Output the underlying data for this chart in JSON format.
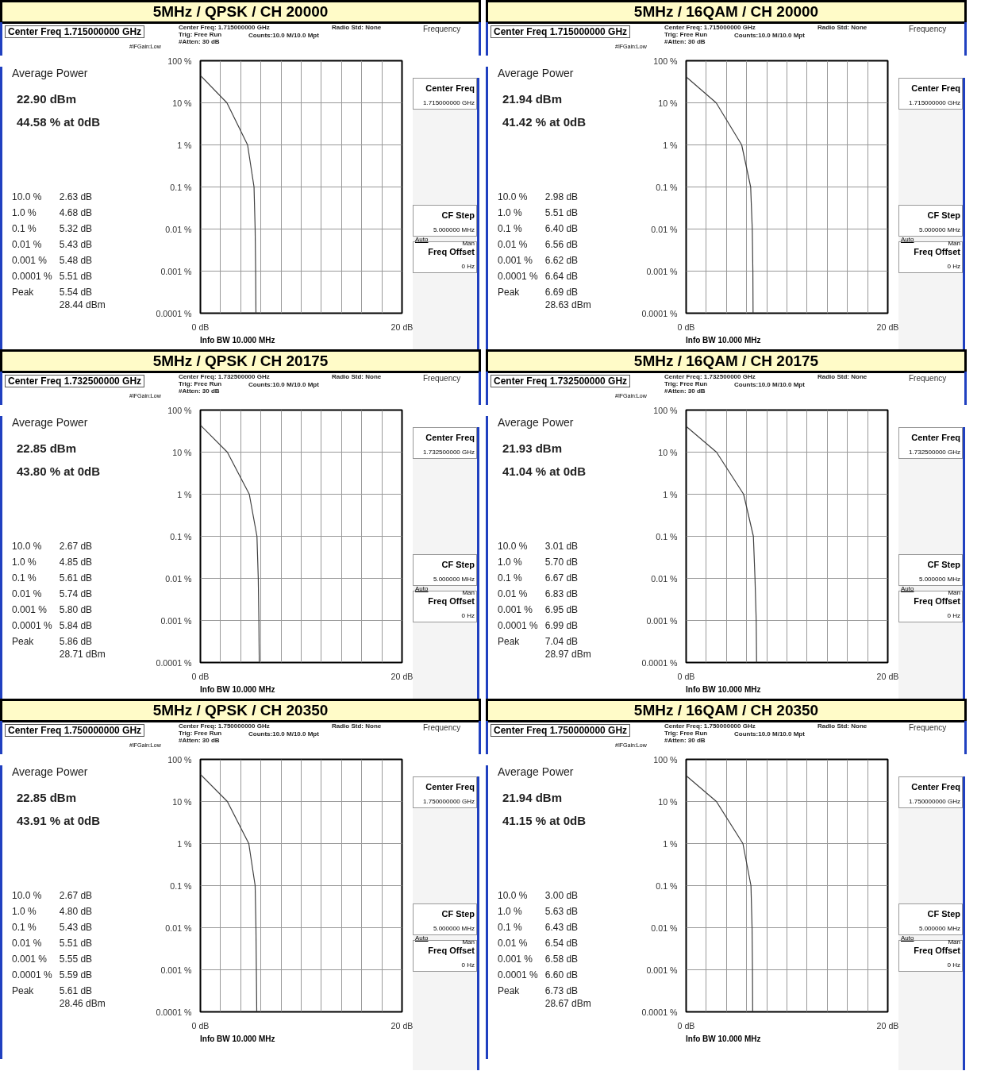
{
  "chart_data": [
    {
      "type": "line",
      "title": "5MHz / QPSK / CH 20000",
      "x": [
        0,
        2.63,
        4.68,
        5.32,
        5.43,
        5.48,
        5.51
      ],
      "series": [
        {
          "color": "#404040",
          "values": [
            44.58,
            10,
            1,
            0.1,
            0.01,
            0.001,
            0.0001
          ]
        }
      ],
      "xlim": [
        0,
        20
      ],
      "xticks": [
        {
          "value": 0,
          "label": "0 dB"
        },
        {
          "value": 2,
          "label": null
        },
        {
          "value": 4,
          "label": null
        },
        {
          "value": 6,
          "label": null
        },
        {
          "value": 8,
          "label": null
        },
        {
          "value": 10,
          "label": null
        },
        {
          "value": 12,
          "label": null
        },
        {
          "value": 14,
          "label": null
        },
        {
          "value": 16,
          "label": null
        },
        {
          "value": 18,
          "label": null
        },
        {
          "value": 20,
          "label": "20 dB"
        }
      ],
      "ylim": [
        0.0001,
        100
      ],
      "yticks": [
        {
          "value": 0.0001,
          "label": "0.0001 %"
        },
        {
          "value": 0.001,
          "label": "0.001 %"
        },
        {
          "value": 0.01,
          "label": "0.01 %"
        },
        {
          "value": 0.1,
          "label": "0.1 %"
        },
        {
          "value": 1,
          "label": "1 %"
        },
        {
          "value": 10,
          "label": "10 %"
        },
        {
          "value": 100,
          "label": "100 %"
        }
      ],
      "log": "y",
      "grid": true,
      "annotations": [
        "Center Freq  1.715000000 GHz",
        "Center Freq: 1.715000000 GHz",
        "Trig: Free Run",
        "#Atten: 30 dB",
        "#IFGain:Low",
        "Radio Std: None",
        "Counts:10.0 M/10.0 Mpt",
        "Average Power",
        "22.90 dBm",
        "44.58 % at 0dB",
        "10.0 %",
        "2.63 dB",
        "1.0 %",
        "4.68 dB",
        "0.1 %",
        "5.32 dB",
        "0.01 %",
        "5.43 dB",
        "0.001 %",
        "5.48 dB",
        "0.0001 %",
        "5.51 dB",
        "Peak",
        "5.54 dB",
        "28.44 dBm",
        "Frequency",
        "Center Freq",
        "1.715000000 GHz",
        "CF Step",
        "5.000000 MHz",
        "Auto",
        "Man",
        "Freq Offset",
        "0 Hz",
        "Info BW 10.000 MHz"
      ]
    },
    {
      "type": "line",
      "title": "5MHz / 16QAM / CH 20000",
      "x": [
        0,
        2.98,
        5.51,
        6.4,
        6.56,
        6.62,
        6.64
      ],
      "series": [
        {
          "color": "#404040",
          "values": [
            41.42,
            10,
            1,
            0.1,
            0.01,
            0.001,
            0.0001
          ]
        }
      ],
      "xlim": [
        0,
        20
      ],
      "xticks": [
        {
          "value": 0,
          "label": "0 dB"
        },
        {
          "value": 2,
          "label": null
        },
        {
          "value": 4,
          "label": null
        },
        {
          "value": 6,
          "label": null
        },
        {
          "value": 8,
          "label": null
        },
        {
          "value": 10,
          "label": null
        },
        {
          "value": 12,
          "label": null
        },
        {
          "value": 14,
          "label": null
        },
        {
          "value": 16,
          "label": null
        },
        {
          "value": 18,
          "label": null
        },
        {
          "value": 20,
          "label": "20 dB"
        }
      ],
      "ylim": [
        0.0001,
        100
      ],
      "yticks": [
        {
          "value": 0.0001,
          "label": "0.0001 %"
        },
        {
          "value": 0.001,
          "label": "0.001 %"
        },
        {
          "value": 0.01,
          "label": "0.01 %"
        },
        {
          "value": 0.1,
          "label": "0.1 %"
        },
        {
          "value": 1,
          "label": "1 %"
        },
        {
          "value": 10,
          "label": "10 %"
        },
        {
          "value": 100,
          "label": "100 %"
        }
      ],
      "log": "y",
      "grid": true,
      "annotations": [
        "Center Freq  1.715000000 GHz",
        "Center Freq: 1.715000000 GHz",
        "Trig: Free Run",
        "#Atten: 30 dB",
        "#IFGain:Low",
        "Radio Std: None",
        "Counts:10.0 M/10.0 Mpt",
        "Average Power",
        "21.94 dBm",
        "41.42 % at 0dB",
        "10.0 %",
        "2.98 dB",
        "1.0 %",
        "5.51 dB",
        "0.1 %",
        "6.40 dB",
        "0.01 %",
        "6.56 dB",
        "0.001 %",
        "6.62 dB",
        "0.0001 %",
        "6.64 dB",
        "Peak",
        "6.69 dB",
        "28.63 dBm",
        "Frequency",
        "Center Freq",
        "1.715000000 GHz",
        "CF Step",
        "5.000000 MHz",
        "Auto",
        "Man",
        "Freq Offset",
        "0 Hz",
        "Info BW 10.000 MHz"
      ]
    },
    {
      "type": "line",
      "title": "5MHz / QPSK / CH 20175",
      "x": [
        0,
        2.67,
        4.85,
        5.61,
        5.74,
        5.8,
        5.84
      ],
      "series": [
        {
          "color": "#404040",
          "values": [
            43.8,
            10,
            1,
            0.1,
            0.01,
            0.001,
            0.0001
          ]
        }
      ],
      "xlim": [
        0,
        20
      ],
      "xticks": [
        {
          "value": 0,
          "label": "0 dB"
        },
        {
          "value": 2,
          "label": null
        },
        {
          "value": 4,
          "label": null
        },
        {
          "value": 6,
          "label": null
        },
        {
          "value": 8,
          "label": null
        },
        {
          "value": 10,
          "label": null
        },
        {
          "value": 12,
          "label": null
        },
        {
          "value": 14,
          "label": null
        },
        {
          "value": 16,
          "label": null
        },
        {
          "value": 18,
          "label": null
        },
        {
          "value": 20,
          "label": "20 dB"
        }
      ],
      "ylim": [
        0.0001,
        100
      ],
      "yticks": [
        {
          "value": 0.0001,
          "label": "0.0001 %"
        },
        {
          "value": 0.001,
          "label": "0.001 %"
        },
        {
          "value": 0.01,
          "label": "0.01 %"
        },
        {
          "value": 0.1,
          "label": "0.1 %"
        },
        {
          "value": 1,
          "label": "1 %"
        },
        {
          "value": 10,
          "label": "10 %"
        },
        {
          "value": 100,
          "label": "100 %"
        }
      ],
      "log": "y",
      "grid": true,
      "annotations": [
        "Center Freq  1.732500000 GHz",
        "Center Freq: 1.732500000 GHz",
        "Trig: Free Run",
        "#Atten: 30 dB",
        "#IFGain:Low",
        "Radio Std: None",
        "Counts:10.0 M/10.0 Mpt",
        "Average Power",
        "22.85 dBm",
        "43.80 % at 0dB",
        "10.0 %",
        "2.67 dB",
        "1.0 %",
        "4.85 dB",
        "0.1 %",
        "5.61 dB",
        "0.01 %",
        "5.74 dB",
        "0.001 %",
        "5.80 dB",
        "0.0001 %",
        "5.84 dB",
        "Peak",
        "5.86 dB",
        "28.71 dBm",
        "Frequency",
        "Center Freq",
        "1.732500000 GHz",
        "CF Step",
        "5.000000 MHz",
        "Auto",
        "Man",
        "Freq Offset",
        "0 Hz",
        "Info BW 10.000 MHz"
      ]
    },
    {
      "type": "line",
      "title": "5MHz / 16QAM / CH 20175",
      "x": [
        0,
        3.01,
        5.7,
        6.67,
        6.83,
        6.95,
        6.99
      ],
      "series": [
        {
          "color": "#404040",
          "values": [
            41.04,
            10,
            1,
            0.1,
            0.01,
            0.001,
            0.0001
          ]
        }
      ],
      "xlim": [
        0,
        20
      ],
      "xticks": [
        {
          "value": 0,
          "label": "0 dB"
        },
        {
          "value": 2,
          "label": null
        },
        {
          "value": 4,
          "label": null
        },
        {
          "value": 6,
          "label": null
        },
        {
          "value": 8,
          "label": null
        },
        {
          "value": 10,
          "label": null
        },
        {
          "value": 12,
          "label": null
        },
        {
          "value": 14,
          "label": null
        },
        {
          "value": 16,
          "label": null
        },
        {
          "value": 18,
          "label": null
        },
        {
          "value": 20,
          "label": "20 dB"
        }
      ],
      "ylim": [
        0.0001,
        100
      ],
      "yticks": [
        {
          "value": 0.0001,
          "label": "0.0001 %"
        },
        {
          "value": 0.001,
          "label": "0.001 %"
        },
        {
          "value": 0.01,
          "label": "0.01 %"
        },
        {
          "value": 0.1,
          "label": "0.1 %"
        },
        {
          "value": 1,
          "label": "1 %"
        },
        {
          "value": 10,
          "label": "10 %"
        },
        {
          "value": 100,
          "label": "100 %"
        }
      ],
      "log": "y",
      "grid": true,
      "annotations": [
        "Center Freq  1.732500000 GHz",
        "Center Freq: 1.732500000 GHz",
        "Trig: Free Run",
        "#Atten: 30 dB",
        "#IFGain:Low",
        "Radio Std: None",
        "Counts:10.0 M/10.0 Mpt",
        "Average Power",
        "21.93 dBm",
        "41.04 % at 0dB",
        "10.0 %",
        "3.01 dB",
        "1.0 %",
        "5.70 dB",
        "0.1 %",
        "6.67 dB",
        "0.01 %",
        "6.83 dB",
        "0.001 %",
        "6.95 dB",
        "0.0001 %",
        "6.99 dB",
        "Peak",
        "7.04 dB",
        "28.97 dBm",
        "Frequency",
        "Center Freq",
        "1.732500000 GHz",
        "CF Step",
        "5.000000 MHz",
        "Auto",
        "Man",
        "Freq Offset",
        "0 Hz",
        "Info BW 10.000 MHz"
      ]
    },
    {
      "type": "line",
      "title": "5MHz / QPSK / CH 20350",
      "x": [
        0,
        2.67,
        4.8,
        5.43,
        5.51,
        5.55,
        5.59
      ],
      "series": [
        {
          "color": "#404040",
          "values": [
            43.91,
            10,
            1,
            0.1,
            0.01,
            0.001,
            0.0001
          ]
        }
      ],
      "xlim": [
        0,
        20
      ],
      "xticks": [
        {
          "value": 0,
          "label": "0 dB"
        },
        {
          "value": 2,
          "label": null
        },
        {
          "value": 4,
          "label": null
        },
        {
          "value": 6,
          "label": null
        },
        {
          "value": 8,
          "label": null
        },
        {
          "value": 10,
          "label": null
        },
        {
          "value": 12,
          "label": null
        },
        {
          "value": 14,
          "label": null
        },
        {
          "value": 16,
          "label": null
        },
        {
          "value": 18,
          "label": null
        },
        {
          "value": 20,
          "label": "20 dB"
        }
      ],
      "ylim": [
        0.0001,
        100
      ],
      "yticks": [
        {
          "value": 0.0001,
          "label": "0.0001 %"
        },
        {
          "value": 0.001,
          "label": "0.001 %"
        },
        {
          "value": 0.01,
          "label": "0.01 %"
        },
        {
          "value": 0.1,
          "label": "0.1 %"
        },
        {
          "value": 1,
          "label": "1 %"
        },
        {
          "value": 10,
          "label": "10 %"
        },
        {
          "value": 100,
          "label": "100 %"
        }
      ],
      "log": "y",
      "grid": true,
      "annotations": [
        "Center Freq  1.750000000 GHz",
        "Center Freq: 1.750000000 GHz",
        "Trig: Free Run",
        "#Atten: 30 dB",
        "#IFGain:Low",
        "Radio Std: None",
        "Counts:10.0 M/10.0 Mpt",
        "Average Power",
        "22.85 dBm",
        "43.91 % at 0dB",
        "10.0 %",
        "2.67 dB",
        "1.0 %",
        "4.80 dB",
        "0.1 %",
        "5.43 dB",
        "0.01 %",
        "5.51 dB",
        "0.001 %",
        "5.55 dB",
        "0.0001 %",
        "5.59 dB",
        "Peak",
        "5.61 dB",
        "28.46 dBm",
        "Frequency",
        "Center Freq",
        "1.750000000 GHz",
        "CF Step",
        "5.000000 MHz",
        "Auto",
        "Man",
        "Freq Offset",
        "0 Hz",
        "Info BW 10.000 MHz"
      ]
    },
    {
      "type": "line",
      "title": "5MHz / 16QAM / CH 20350",
      "x": [
        0,
        3.0,
        5.63,
        6.43,
        6.54,
        6.58,
        6.6
      ],
      "series": [
        {
          "color": "#404040",
          "values": [
            41.15,
            10,
            1,
            0.1,
            0.01,
            0.001,
            0.0001
          ]
        }
      ],
      "xlim": [
        0,
        20
      ],
      "xticks": [
        {
          "value": 0,
          "label": "0 dB"
        },
        {
          "value": 2,
          "label": null
        },
        {
          "value": 4,
          "label": null
        },
        {
          "value": 6,
          "label": null
        },
        {
          "value": 8,
          "label": null
        },
        {
          "value": 10,
          "label": null
        },
        {
          "value": 12,
          "label": null
        },
        {
          "value": 14,
          "label": null
        },
        {
          "value": 16,
          "label": null
        },
        {
          "value": 18,
          "label": null
        },
        {
          "value": 20,
          "label": "20 dB"
        }
      ],
      "ylim": [
        0.0001,
        100
      ],
      "yticks": [
        {
          "value": 0.0001,
          "label": "0.0001 %"
        },
        {
          "value": 0.001,
          "label": "0.001 %"
        },
        {
          "value": 0.01,
          "label": "0.01 %"
        },
        {
          "value": 0.1,
          "label": "0.1 %"
        },
        {
          "value": 1,
          "label": "1 %"
        },
        {
          "value": 10,
          "label": "10 %"
        },
        {
          "value": 100,
          "label": "100 %"
        }
      ],
      "log": "y",
      "grid": true,
      "annotations": [
        "Center Freq  1.750000000 GHz",
        "Center Freq: 1.750000000 GHz",
        "Trig: Free Run",
        "#Atten: 30 dB",
        "#IFGain:Low",
        "Radio Std: None",
        "Counts:10.0 M/10.0 Mpt",
        "Average Power",
        "21.94 dBm",
        "41.15 % at 0dB",
        "10.0 %",
        "3.00 dB",
        "1.0 %",
        "5.63 dB",
        "0.1 %",
        "6.43 dB",
        "0.01 %",
        "6.54 dB",
        "0.001 %",
        "6.58 dB",
        "0.0001 %",
        "6.60 dB",
        "Peak",
        "6.73 dB",
        "28.67 dBm",
        "Frequency",
        "Center Freq",
        "1.750000000 GHz",
        "CF Step",
        "5.000000 MHz",
        "Auto",
        "Man",
        "Freq Offset",
        "0 Hz",
        "Info BW 10.000 MHz"
      ]
    }
  ]
}
